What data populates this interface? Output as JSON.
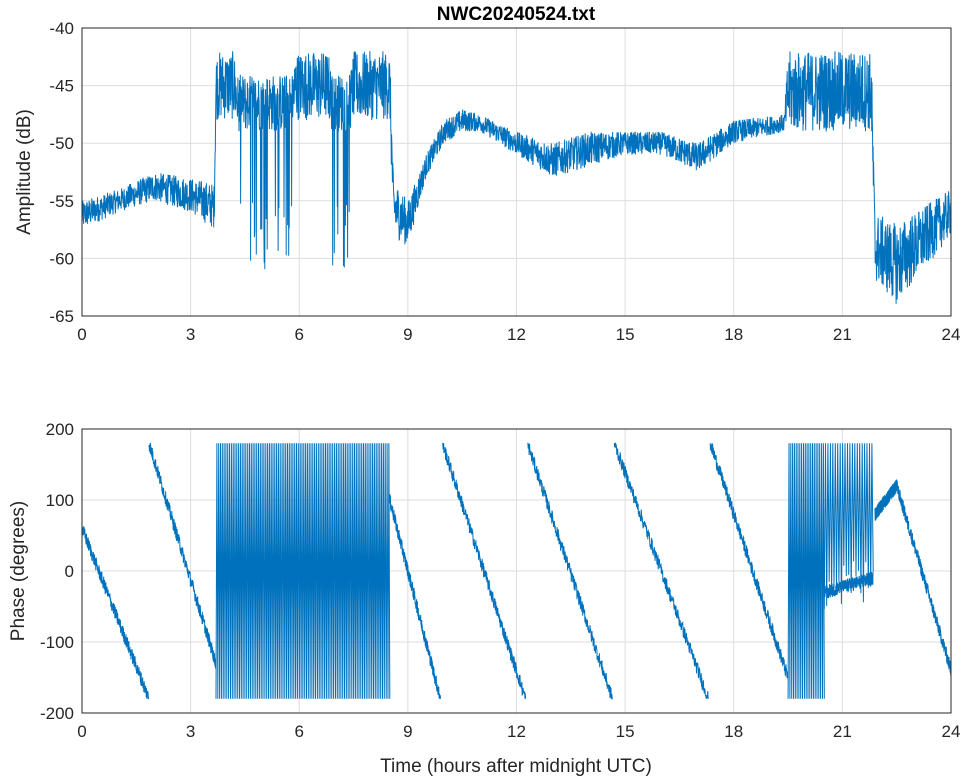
{
  "chart_data": [
    {
      "type": "line",
      "title": "NWC20240524.txt",
      "xlabel": "",
      "ylabel": "Amplitude (dB)",
      "xlim": [
        0,
        24
      ],
      "ylim": [
        -65,
        -40
      ],
      "grid": true,
      "xticks": [
        "0",
        "3",
        "6",
        "9",
        "12",
        "15",
        "18",
        "21",
        "24"
      ],
      "yticks": [
        "-40",
        "-45",
        "-50",
        "-55",
        "-60",
        "-65"
      ],
      "series_color": "#0072bd",
      "envelope_columns": [
        "hour",
        "min_dB",
        "max_dB"
      ],
      "envelope": [
        [
          0,
          -57.5,
          -55
        ],
        [
          1,
          -56,
          -54
        ],
        [
          2,
          -55,
          -52.5
        ],
        [
          3,
          -56,
          -53
        ],
        [
          3.65,
          -57.5,
          -53.5
        ],
        [
          3.7,
          -48,
          -42
        ],
        [
          4.2,
          -48,
          -42
        ],
        [
          4.3,
          -49,
          -44
        ],
        [
          5.8,
          -49,
          -44
        ],
        [
          5.9,
          -48,
          -42
        ],
        [
          6.8,
          -48,
          -42
        ],
        [
          6.9,
          -49,
          -44
        ],
        [
          7.4,
          -49,
          -44
        ],
        [
          7.5,
          -48,
          -42
        ],
        [
          8.5,
          -48,
          -42
        ],
        [
          8.6,
          -58,
          -53
        ],
        [
          9.0,
          -59,
          -55
        ],
        [
          9.5,
          -53,
          -51
        ],
        [
          10,
          -50,
          -48
        ],
        [
          10.5,
          -49,
          -47
        ],
        [
          11,
          -49,
          -47.5
        ],
        [
          12,
          -51,
          -49
        ],
        [
          13,
          -53,
          -50
        ],
        [
          14,
          -52,
          -49
        ],
        [
          15,
          -51,
          -49
        ],
        [
          16,
          -51,
          -49
        ],
        [
          17,
          -52.5,
          -50
        ],
        [
          18,
          -50,
          -48
        ],
        [
          19.4,
          -49,
          -47.5
        ],
        [
          19.5,
          -49,
          -42
        ],
        [
          21.8,
          -49,
          -42
        ],
        [
          21.9,
          -62,
          -56
        ],
        [
          22.5,
          -64,
          -57
        ],
        [
          23,
          -62,
          -56
        ],
        [
          24,
          -58,
          -54
        ]
      ],
      "dropout_regions": [
        {
          "from": 4.3,
          "to": 5.8,
          "min_dB": -61
        },
        {
          "from": 6.9,
          "to": 7.4,
          "min_dB": -61
        }
      ]
    },
    {
      "type": "line",
      "title": "",
      "xlabel": "Time (hours after midnight UTC)",
      "ylabel": "Phase (degrees)",
      "xlim": [
        0,
        24
      ],
      "ylim": [
        -200,
        200
      ],
      "grid": true,
      "xticks": [
        "0",
        "3",
        "6",
        "9",
        "12",
        "15",
        "18",
        "21",
        "24"
      ],
      "yticks": [
        "200",
        "100",
        "0",
        "-100",
        "-200"
      ],
      "series_color": "#0072bd",
      "ramps": [
        {
          "from": [
            0,
            60
          ],
          "to": [
            1.85,
            -180
          ]
        },
        {
          "from": [
            1.85,
            180
          ],
          "to": [
            3.7,
            -130
          ]
        },
        {
          "from": [
            8.5,
            100
          ],
          "to": [
            9.9,
            -180
          ]
        },
        {
          "from": [
            9.95,
            180
          ],
          "to": [
            12.25,
            -180
          ]
        },
        {
          "from": [
            12.3,
            180
          ],
          "to": [
            14.65,
            -180
          ]
        },
        {
          "from": [
            14.7,
            180
          ],
          "to": [
            17.3,
            -180
          ]
        },
        {
          "from": [
            17.35,
            180
          ],
          "to": [
            19.5,
            -150
          ]
        },
        {
          "from": [
            20.5,
            -30
          ],
          "to": [
            21.85,
            -10
          ]
        },
        {
          "from": [
            21.9,
            80
          ],
          "to": [
            22.5,
            120
          ]
        },
        {
          "from": [
            22.5,
            120
          ],
          "to": [
            24,
            -140
          ]
        }
      ],
      "wrap_regions": [
        [
          3.7,
          8.5
        ],
        [
          19.5,
          20.5
        ],
        [
          20.5,
          21.85
        ]
      ],
      "wrap_range": [
        -180,
        180
      ]
    }
  ]
}
